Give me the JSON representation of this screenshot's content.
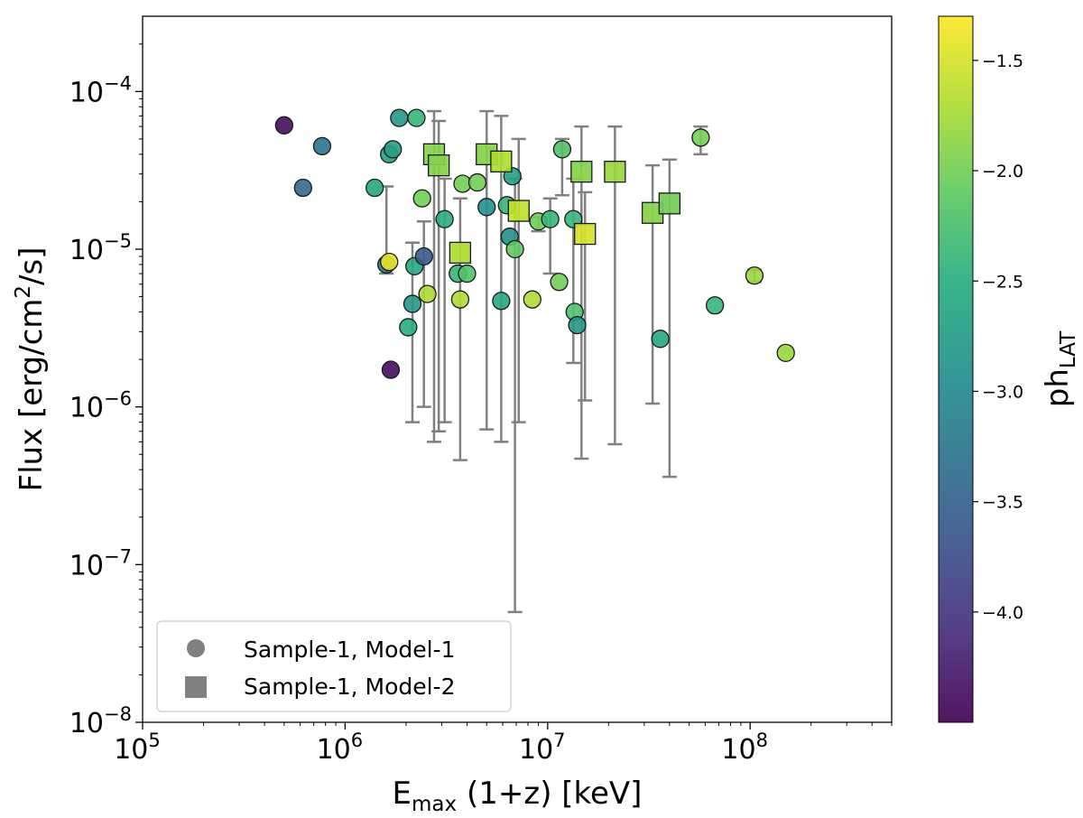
{
  "chart_data": {
    "type": "scatter",
    "x_scale": "log",
    "y_scale": "log",
    "xlim": [
      100000,
      500000000
    ],
    "ylim": [
      1e-08,
      0.0003
    ],
    "xlabel": {
      "main": "E",
      "sub": "max",
      "rest": " (1+z) [keV]"
    },
    "ylabel": {
      "pre": "Flux [erg/cm",
      "sup": "2",
      "post": "/s]"
    },
    "x_ticks": [
      {
        "value": 100000,
        "base": "10",
        "exp": "5"
      },
      {
        "value": 1000000,
        "base": "10",
        "exp": "6"
      },
      {
        "value": 10000000,
        "base": "10",
        "exp": "7"
      },
      {
        "value": 100000000,
        "base": "10",
        "exp": "8"
      }
    ],
    "y_ticks": [
      {
        "value": 1e-08,
        "base": "10",
        "exp": "−8"
      },
      {
        "value": 1e-07,
        "base": "10",
        "exp": "−7"
      },
      {
        "value": 1e-06,
        "base": "10",
        "exp": "−6"
      },
      {
        "value": 1e-05,
        "base": "10",
        "exp": "−5"
      },
      {
        "value": 0.0001,
        "base": "10",
        "exp": "−4"
      }
    ],
    "colorbar": {
      "label_main": "ph",
      "label_sub": "LAT",
      "range": [
        -4.5,
        -1.3
      ],
      "ticks": [
        {
          "value": -4.0,
          "label": "−4.0"
        },
        {
          "value": -3.5,
          "label": "−3.5"
        },
        {
          "value": -3.0,
          "label": "−3.0"
        },
        {
          "value": -2.5,
          "label": "−2.5"
        },
        {
          "value": -2.0,
          "label": "−2.0"
        },
        {
          "value": -1.5,
          "label": "−1.5"
        }
      ],
      "colormap": [
        "#440154",
        "#472d7b",
        "#3b528b",
        "#2c728e",
        "#21918c",
        "#28ae80",
        "#5ec962",
        "#addc30",
        "#fde725"
      ]
    },
    "legend": {
      "position": "lower-left",
      "entries": [
        {
          "marker": "circle",
          "label": "Sample-1, Model-1"
        },
        {
          "marker": "square",
          "label": "Sample-1, Model-2"
        }
      ]
    },
    "series": [
      {
        "name": "Sample-1, Model-1",
        "marker": "circle",
        "points": [
          {
            "x": 500000,
            "y": 6.1e-05,
            "c": -4.4
          },
          {
            "x": 620000,
            "y": 2.45e-05,
            "c": -3.4
          },
          {
            "x": 770000,
            "y": 4.5e-05,
            "c": -3.3
          },
          {
            "x": 1400000,
            "y": 2.45e-05,
            "c": -2.6
          },
          {
            "x": 1600000,
            "y": 8e-06,
            "c": -3.2,
            "err_lo": 7e-06,
            "err_hi": 2.5e-05
          },
          {
            "x": 1650000,
            "y": 8.3e-06,
            "c": -1.4
          },
          {
            "x": 1680000,
            "y": 1.72e-06,
            "c": -4.4
          },
          {
            "x": 1650000,
            "y": 4e-05,
            "c": -2.7
          },
          {
            "x": 1720000,
            "y": 4.3e-05,
            "c": -2.7
          },
          {
            "x": 1850000,
            "y": 6.8e-05,
            "c": -2.8
          },
          {
            "x": 2050000,
            "y": 3.2e-06,
            "c": -2.5
          },
          {
            "x": 2150000,
            "y": 4.5e-06,
            "c": -2.8,
            "err_lo": 8e-07,
            "err_hi": 1.1e-05
          },
          {
            "x": 2200000,
            "y": 7.8e-06,
            "c": -2.6
          },
          {
            "x": 2250000,
            "y": 6.8e-05,
            "c": -2.4
          },
          {
            "x": 2400000,
            "y": 2.1e-05,
            "c": -2.0
          },
          {
            "x": 2450000,
            "y": 9e-06,
            "c": -3.6,
            "err_lo": 1e-06,
            "err_hi": 1.5e-05
          },
          {
            "x": 2550000,
            "y": 5.2e-06,
            "c": -1.7
          },
          {
            "x": 3100000,
            "y": 1.55e-05,
            "c": -2.5,
            "err_lo": 8e-07,
            "err_hi": 2.8e-05
          },
          {
            "x": 3600000,
            "y": 7e-06,
            "c": -2.4
          },
          {
            "x": 3700000,
            "y": 4.8e-06,
            "c": -1.7
          },
          {
            "x": 3800000,
            "y": 2.6e-05,
            "c": -2.0
          },
          {
            "x": 4000000,
            "y": 7e-06,
            "c": -2.2
          },
          {
            "x": 4500000,
            "y": 2.65e-05,
            "c": -2.0
          },
          {
            "x": 5000000,
            "y": 1.85e-05,
            "c": -2.9
          },
          {
            "x": 5900000,
            "y": 4.7e-06,
            "c": -2.6
          },
          {
            "x": 6300000,
            "y": 1.9e-05,
            "c": -2.4
          },
          {
            "x": 6500000,
            "y": 1.2e-05,
            "c": -2.9
          },
          {
            "x": 6700000,
            "y": 2.9e-05,
            "c": -2.7
          },
          {
            "x": 6900000,
            "y": 1e-05,
            "c": -2.1,
            "err_lo": 5e-08,
            "err_hi": 2.8e-05
          },
          {
            "x": 8400000,
            "y": 4.8e-06,
            "c": -1.7
          },
          {
            "x": 9000000,
            "y": 1.5e-05,
            "c": -2.0,
            "err_lo": 1.3e-05,
            "err_hi": 1.6e-05
          },
          {
            "x": 10300000,
            "y": 1.55e-05,
            "c": -2.4,
            "err_lo": 7e-06,
            "err_hi": 2.1e-05
          },
          {
            "x": 11400000,
            "y": 6.2e-06,
            "c": -2.0
          },
          {
            "x": 11800000,
            "y": 4.3e-05,
            "c": -2.2,
            "err_lo": 2.2e-05,
            "err_hi": 5e-05
          },
          {
            "x": 13400000,
            "y": 1.55e-05,
            "c": -2.4,
            "err_lo": 1.9e-06,
            "err_hi": 2.8e-05
          },
          {
            "x": 13600000,
            "y": 4e-06,
            "c": -2.2
          },
          {
            "x": 14000000,
            "y": 3.3e-06,
            "c": -2.8
          },
          {
            "x": 36000000,
            "y": 2.7e-06,
            "c": -2.6
          },
          {
            "x": 57000000,
            "y": 5.1e-05,
            "c": -2.0,
            "err_lo": 4e-05,
            "err_hi": 6e-05
          },
          {
            "x": 67000000,
            "y": 4.4e-06,
            "c": -2.4
          },
          {
            "x": 105000000,
            "y": 6.8e-06,
            "c": -1.8,
            "err_lo": 6.2e-06,
            "err_hi": 7.4e-06
          },
          {
            "x": 150000000,
            "y": 2.2e-06,
            "c": -1.8
          }
        ]
      },
      {
        "name": "Sample-1, Model-2",
        "marker": "square",
        "points": [
          {
            "x": 2750000,
            "y": 4e-05,
            "c": -1.9,
            "err_lo": 6e-07,
            "err_hi": 7.5e-05
          },
          {
            "x": 2900000,
            "y": 3.4e-05,
            "c": -1.9,
            "err_lo": 7e-07,
            "err_hi": 6.5e-05
          },
          {
            "x": 3700000,
            "y": 9.5e-06,
            "c": -1.7,
            "err_lo": 4.6e-07,
            "err_hi": 2.1e-05
          },
          {
            "x": 5000000,
            "y": 4e-05,
            "c": -1.9,
            "err_lo": 7.2e-07,
            "err_hi": 7.5e-05
          },
          {
            "x": 5900000,
            "y": 3.6e-05,
            "c": -1.7,
            "err_lo": 6e-07,
            "err_hi": 7e-05
          },
          {
            "x": 7200000,
            "y": 1.75e-05,
            "c": -1.6,
            "err_lo": 8e-07,
            "err_hi": 5e-05
          },
          {
            "x": 14700000,
            "y": 3.1e-05,
            "c": -1.9,
            "err_lo": 4.7e-07,
            "err_hi": 6e-05
          },
          {
            "x": 15300000,
            "y": 1.25e-05,
            "c": -1.5,
            "err_lo": 1.1e-06,
            "err_hi": 2.3e-05
          },
          {
            "x": 21500000,
            "y": 3.1e-05,
            "c": -1.8,
            "err_lo": 5.8e-07,
            "err_hi": 6e-05
          },
          {
            "x": 33000000,
            "y": 1.7e-05,
            "c": -1.9,
            "err_lo": 1.05e-06,
            "err_hi": 3.4e-05
          },
          {
            "x": 40000000,
            "y": 1.95e-05,
            "c": -2.0,
            "err_lo": 3.6e-07,
            "err_hi": 3.7e-05
          }
        ]
      }
    ]
  }
}
